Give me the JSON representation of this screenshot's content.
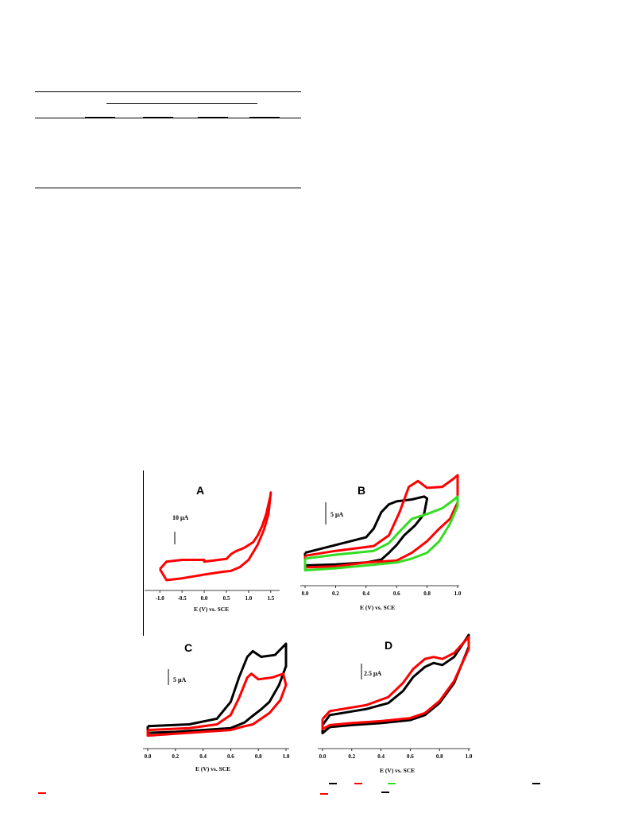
{
  "colors": {
    "black": "#000000",
    "red": "#ff0000",
    "green": "#33dd22"
  },
  "panels": [
    {
      "label": "A",
      "xlabel": "E (V) vs. SCE",
      "xticks": [
        "-1.0",
        "-0.5",
        "0.0",
        "0.5",
        "1.0",
        "1.5"
      ],
      "scale_bar": "10 μA",
      "chart_data": {
        "type": "line",
        "xlim": [
          -1.2,
          1.7
        ],
        "xlabel": "E (V) vs. SCE",
        "series": [
          {
            "color": "red",
            "x": [
              -1.0,
              -0.85,
              -0.5,
              0.0,
              0.0,
              0.5,
              0.6,
              0.7,
              0.9,
              1.1,
              1.2,
              1.3,
              1.4,
              1.5,
              1.5,
              1.45,
              1.35,
              1.2,
              1.1,
              1.0,
              0.8,
              0.6,
              0.4,
              0.0,
              -0.5,
              -0.85,
              -1.0
            ],
            "y": [
              0.12,
              0.2,
              0.22,
              0.22,
              0.2,
              0.23,
              0.28,
              0.31,
              0.35,
              0.41,
              0.48,
              0.58,
              0.72,
              0.93,
              0.95,
              0.72,
              0.55,
              0.38,
              0.3,
              0.22,
              0.14,
              0.1,
              0.09,
              0.06,
              0.02,
              0.0,
              0.12
            ]
          }
        ]
      }
    },
    {
      "label": "B",
      "xlabel": "E (V) vs. SCE",
      "xticks": [
        "0.0",
        "0.2",
        "0.4",
        "0.6",
        "0.8",
        "1.0"
      ],
      "scale_bar": "5 μA",
      "chart_data": {
        "type": "line",
        "xlim": [
          0,
          1.0
        ],
        "xlabel": "E (V) vs. SCE",
        "series": [
          {
            "color": "black",
            "x": [
              0.0,
              0.2,
              0.4,
              0.45,
              0.5,
              0.55,
              0.6,
              0.7,
              0.78,
              0.8,
              0.78,
              0.72,
              0.65,
              0.6,
              0.55,
              0.5,
              0.4,
              0.2,
              0.0,
              0.0
            ],
            "y": [
              0.2,
              0.28,
              0.36,
              0.45,
              0.62,
              0.7,
              0.73,
              0.75,
              0.78,
              0.76,
              0.6,
              0.48,
              0.38,
              0.28,
              0.2,
              0.13,
              0.1,
              0.08,
              0.07,
              0.2
            ]
          },
          {
            "color": "red",
            "x": [
              0.0,
              0.2,
              0.45,
              0.55,
              0.62,
              0.68,
              0.74,
              0.8,
              0.9,
              0.97,
              1.0,
              1.0,
              0.95,
              0.88,
              0.8,
              0.75,
              0.7,
              0.6,
              0.4,
              0.2,
              0.0,
              0.0
            ],
            "y": [
              0.17,
              0.22,
              0.27,
              0.38,
              0.62,
              0.88,
              0.94,
              0.87,
              0.88,
              0.96,
              1.0,
              0.72,
              0.55,
              0.45,
              0.32,
              0.26,
              0.2,
              0.12,
              0.1,
              0.06,
              0.05,
              0.17
            ]
          },
          {
            "color": "green",
            "x": [
              0.0,
              0.2,
              0.45,
              0.55,
              0.62,
              0.7,
              0.8,
              0.9,
              0.97,
              1.0,
              1.0,
              0.95,
              0.88,
              0.8,
              0.7,
              0.6,
              0.4,
              0.2,
              0.0,
              0.0
            ],
            "y": [
              0.14,
              0.18,
              0.22,
              0.3,
              0.42,
              0.55,
              0.6,
              0.66,
              0.74,
              0.78,
              0.68,
              0.5,
              0.32,
              0.2,
              0.14,
              0.1,
              0.07,
              0.04,
              0.02,
              0.14
            ]
          }
        ]
      }
    },
    {
      "label": "C",
      "xlabel": "E (V) vs. SCE",
      "xticks": [
        "0.0",
        "0.2",
        "0.4",
        "0.6",
        "0.8",
        "1.0"
      ],
      "scale_bar": "5 μA",
      "chart_data": {
        "type": "line",
        "xlim": [
          0,
          1.0
        ],
        "xlabel": "E (V) vs. SCE",
        "series": [
          {
            "color": "black",
            "x": [
              0.0,
              0.3,
              0.5,
              0.6,
              0.66,
              0.72,
              0.76,
              0.82,
              0.92,
              1.0,
              1.0,
              0.95,
              0.88,
              0.82,
              0.75,
              0.7,
              0.6,
              0.4,
              0.2,
              0.0,
              0.0
            ],
            "y": [
              0.12,
              0.14,
              0.2,
              0.38,
              0.64,
              0.86,
              0.92,
              0.86,
              0.88,
              1.0,
              0.76,
              0.56,
              0.38,
              0.3,
              0.22,
              0.16,
              0.1,
              0.08,
              0.06,
              0.05,
              0.12
            ]
          },
          {
            "color": "red",
            "x": [
              0.0,
              0.3,
              0.5,
              0.6,
              0.66,
              0.72,
              0.75,
              0.8,
              0.9,
              0.98,
              1.0,
              0.96,
              0.88,
              0.82,
              0.76,
              0.7,
              0.6,
              0.4,
              0.2,
              0.0,
              0.0
            ],
            "y": [
              0.08,
              0.1,
              0.14,
              0.24,
              0.42,
              0.64,
              0.68,
              0.62,
              0.64,
              0.68,
              0.56,
              0.4,
              0.26,
              0.2,
              0.14,
              0.12,
              0.08,
              0.06,
              0.04,
              0.02,
              0.08
            ]
          }
        ]
      }
    },
    {
      "label": "D",
      "xlabel": "E (V) vs. SCE",
      "xticks": [
        "0.0",
        "0.2",
        "0.4",
        "0.6",
        "0.8",
        "1.0"
      ],
      "scale_bar": "2.5 μA",
      "chart_data": {
        "type": "line",
        "xlim": [
          0,
          1.0
        ],
        "xlabel": "E (V) vs. SCE",
        "series": [
          {
            "color": "black",
            "x": [
              0.0,
              0.05,
              0.3,
              0.45,
              0.55,
              0.62,
              0.7,
              0.76,
              0.82,
              0.9,
              1.0,
              1.0,
              0.9,
              0.8,
              0.7,
              0.6,
              0.4,
              0.2,
              0.05,
              0.0,
              0.0
            ],
            "y": [
              0.1,
              0.2,
              0.26,
              0.32,
              0.44,
              0.58,
              0.68,
              0.72,
              0.7,
              0.78,
              1.0,
              0.88,
              0.52,
              0.32,
              0.2,
              0.15,
              0.12,
              0.1,
              0.08,
              0.02,
              0.1
            ]
          },
          {
            "color": "red",
            "x": [
              0.0,
              0.05,
              0.3,
              0.45,
              0.55,
              0.62,
              0.7,
              0.76,
              0.82,
              0.9,
              1.0,
              1.0,
              0.9,
              0.8,
              0.7,
              0.6,
              0.4,
              0.2,
              0.05,
              0.0,
              0.0
            ],
            "y": [
              0.16,
              0.24,
              0.3,
              0.38,
              0.52,
              0.66,
              0.76,
              0.78,
              0.76,
              0.82,
              0.98,
              0.86,
              0.54,
              0.34,
              0.22,
              0.17,
              0.14,
              0.12,
              0.1,
              0.06,
              0.16
            ]
          }
        ]
      }
    }
  ],
  "legend_marks": [
    {
      "color": "red"
    },
    {
      "color": "black"
    },
    {
      "color": "red"
    },
    {
      "color": "green"
    },
    {
      "color": "black"
    },
    {
      "color": "red"
    },
    {
      "color": "black"
    }
  ]
}
